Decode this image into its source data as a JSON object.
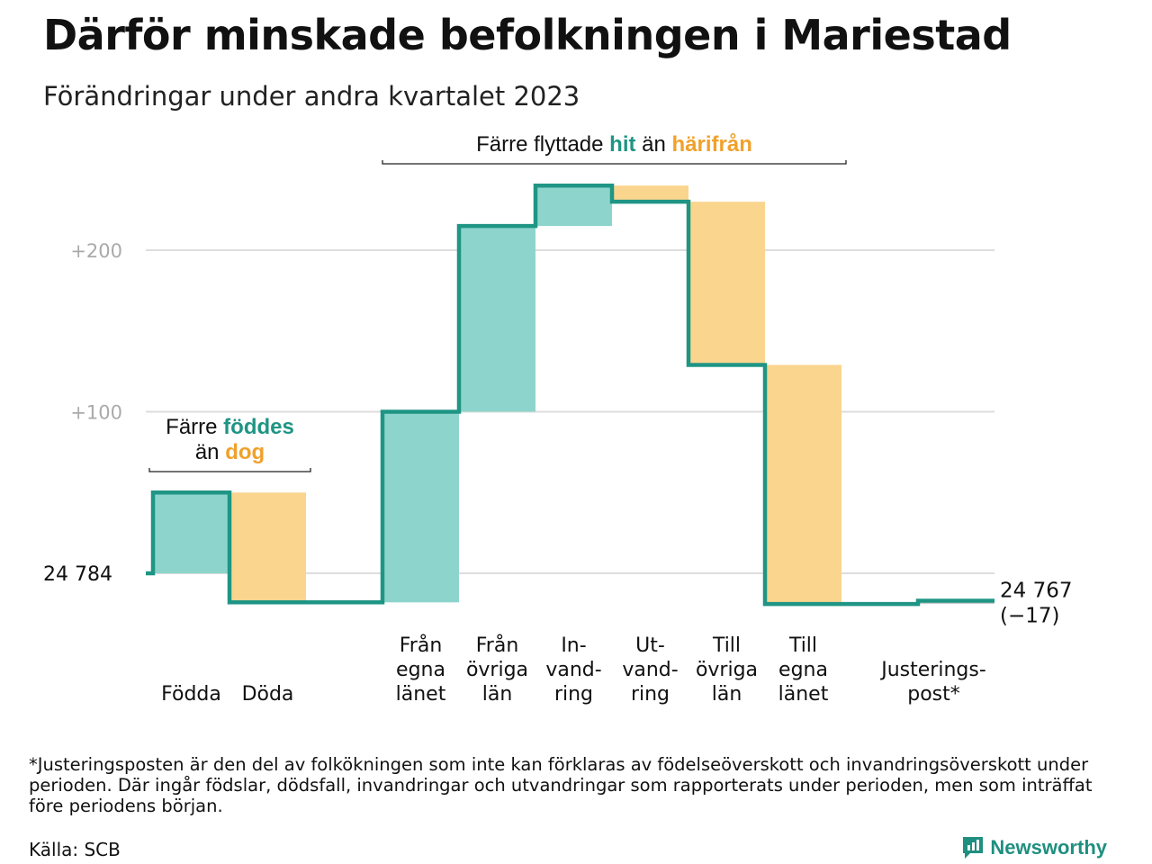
{
  "title": "Därför minskade befolkningen i Mariestad",
  "subtitle": "Förändringar under andra kvartalet 2023",
  "footnote": "*Justeringsposten är den del av folkökningen som inte kan förklaras av födelseöverskott och invandringsöverskott under perioden. Där ingår födslar, dödsfall, invandringar och utvandringar som rapporterats under perioden, men som inträffat före periodens början.",
  "source": "Källa: SCB",
  "brand": "Newsworthy",
  "colors": {
    "increase": "#8dd5cc",
    "decrease": "#fad58e",
    "line": "#1f9585",
    "teal_text": "#1f9585",
    "orange_text": "#f0a12b",
    "grid": "#dddddd",
    "adjust": "#cccccc"
  },
  "chart_data": {
    "type": "waterfall",
    "start_label": "24  784",
    "end_label": "24 767",
    "end_change": "(−17)",
    "yticks": [
      {
        "value": 100,
        "label": "+100"
      },
      {
        "value": 200,
        "label": "+200"
      }
    ],
    "ylim": [
      -40,
      240
    ],
    "steps": [
      {
        "category": "Födda",
        "label": [
          "Födda"
        ],
        "from": 0,
        "to": 50,
        "kind": "in"
      },
      {
        "category": "Döda",
        "label": [
          "Döda"
        ],
        "from": 50,
        "to": -18,
        "kind": "out"
      },
      {
        "category": "gap",
        "label": [],
        "from": -18,
        "to": -18,
        "kind": "gap"
      },
      {
        "category": "Från egna länet",
        "label": [
          "Från",
          "egna",
          "länet"
        ],
        "from": -18,
        "to": 100,
        "kind": "in"
      },
      {
        "category": "Från övriga län",
        "label": [
          "Från",
          "övriga",
          "län"
        ],
        "from": 100,
        "to": 215,
        "kind": "in"
      },
      {
        "category": "Invandring",
        "label": [
          "In-",
          "vand-",
          "ring"
        ],
        "from": 215,
        "to": 240,
        "kind": "in"
      },
      {
        "category": "Utvandring",
        "label": [
          "Ut-",
          "vand-",
          "ring"
        ],
        "from": 240,
        "to": 230,
        "kind": "out"
      },
      {
        "category": "Till övriga län",
        "label": [
          "Till",
          "övriga",
          "län"
        ],
        "from": 230,
        "to": 129,
        "kind": "out"
      },
      {
        "category": "Till egna länet",
        "label": [
          "Till",
          "egna",
          "länet"
        ],
        "from": 129,
        "to": -19,
        "kind": "out"
      },
      {
        "category": "gap",
        "label": [],
        "from": -19,
        "to": -19,
        "kind": "gap"
      },
      {
        "category": "Justeringspost*",
        "label": [
          "Justerings-",
          "post*"
        ],
        "from": -19,
        "to": -17,
        "kind": "adjust"
      }
    ],
    "annotations": [
      {
        "span": [
          0,
          1
        ],
        "lines": [
          [
            {
              "t": "Färre "
            },
            {
              "t": "föddes",
              "c": "teal"
            }
          ],
          [
            {
              "t": "än "
            },
            {
              "t": "dog",
              "c": "orange"
            }
          ]
        ]
      },
      {
        "span": [
          3,
          8
        ],
        "lines": [
          [
            {
              "t": "Färre flyttade "
            },
            {
              "t": "hit",
              "c": "teal"
            },
            {
              "t": " än "
            },
            {
              "t": "härifrån",
              "c": "orange"
            }
          ]
        ]
      }
    ]
  }
}
